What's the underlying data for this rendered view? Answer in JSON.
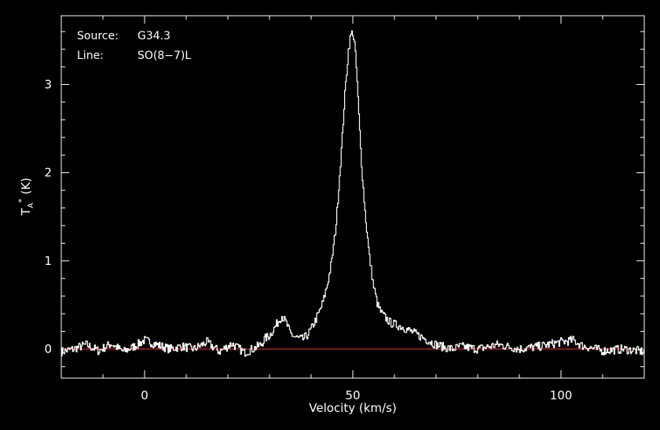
{
  "chart_data": {
    "type": "line",
    "annotations": [
      {
        "label": "Source:",
        "value": "G34.3"
      },
      {
        "label": "Line:",
        "value": "SO(8−7)L"
      }
    ],
    "xlabel": "Velocity (km/s)",
    "ylabel": {
      "main": "T",
      "sup": "*",
      "sub": "A",
      "unit": "(K)"
    },
    "xlim": [
      -20,
      120
    ],
    "ylim": [
      -0.33,
      3.78
    ],
    "x_ticks": [
      {
        "value": 0,
        "label": "0"
      },
      {
        "value": 50,
        "label": "50"
      },
      {
        "value": 100,
        "label": "100"
      }
    ],
    "y_ticks": [
      {
        "value": 0,
        "label": "0"
      },
      {
        "value": 1,
        "label": "1"
      },
      {
        "value": 2,
        "label": "2"
      },
      {
        "value": 3,
        "label": "3"
      }
    ],
    "baseline": {
      "value": 0,
      "color": "#ff2a2a"
    },
    "series": [
      {
        "color": "#ffffff",
        "x": [
          -20,
          -17,
          -14,
          -11,
          -8,
          -5,
          -2,
          0,
          3,
          6,
          9,
          12,
          15,
          18,
          21,
          24,
          26,
          28,
          29,
          30,
          31,
          32,
          33,
          34,
          35,
          36,
          37,
          38,
          39,
          40,
          41,
          42,
          43,
          44,
          45,
          46,
          47,
          47.5,
          48,
          48.5,
          49,
          49.5,
          50,
          50.5,
          51,
          51.5,
          52,
          52.5,
          53,
          54,
          55,
          56,
          57,
          58,
          59,
          60,
          62,
          64,
          66,
          68,
          70,
          72,
          74,
          76,
          80,
          85,
          90,
          95,
          100,
          103,
          105,
          110,
          115,
          120
        ],
        "y": [
          -0.03,
          0.0,
          0.05,
          -0.02,
          0.06,
          -0.03,
          0.04,
          0.1,
          0.05,
          0.0,
          0.03,
          0.0,
          0.08,
          -0.03,
          0.06,
          -0.04,
          0.0,
          0.05,
          0.12,
          0.15,
          0.22,
          0.3,
          0.38,
          0.3,
          0.18,
          0.14,
          0.12,
          0.11,
          0.15,
          0.22,
          0.32,
          0.42,
          0.55,
          0.75,
          1.0,
          1.4,
          2.05,
          2.4,
          2.8,
          3.1,
          3.4,
          3.55,
          3.6,
          3.45,
          3.1,
          2.65,
          2.2,
          1.85,
          1.55,
          1.05,
          0.72,
          0.5,
          0.4,
          0.35,
          0.3,
          0.28,
          0.25,
          0.2,
          0.15,
          0.1,
          0.05,
          0.02,
          0.0,
          0.03,
          0.0,
          0.05,
          0.0,
          0.03,
          0.08,
          0.1,
          0.04,
          -0.02,
          0.0,
          -0.03
        ]
      }
    ]
  }
}
